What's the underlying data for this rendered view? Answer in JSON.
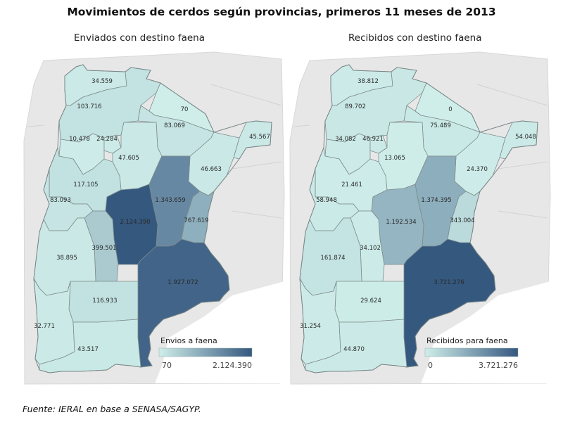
{
  "title": "Movimientos de cerdos según provincias, primeros 11 meses de 2013",
  "maps": [
    {
      "subtitle": "Enviados con destino faena",
      "legend": {
        "title": "Envios a faena",
        "min": "70",
        "max": "2.124.390",
        "color_min": "#cfeeea",
        "color_max": "#35587f"
      },
      "values": {
        "jujuy": "34.559",
        "salta": "103.716",
        "formosa": "70",
        "chaco": "83.069",
        "misiones": "45.567",
        "catamarca": "10.478",
        "tucuman": "24.284",
        "santiago": "47.605",
        "corrientes": "46.663",
        "larioja": "117.105",
        "santafe": "1.343.659",
        "sanjuan": "83.093",
        "cordoba": "2.124.390",
        "entrerios": "767.619",
        "sanluis": "399.501",
        "mendoza": "38.895",
        "buenosaires": "1.927.072",
        "lapampa": "116.933",
        "neuquen": "32.771",
        "rionegro": "43.517"
      }
    },
    {
      "subtitle": "Recibidos con destino faena",
      "legend": {
        "title": "Recibidos para faena",
        "min": "0",
        "max": "3.721.276",
        "color_min": "#cfeeea",
        "color_max": "#35587f"
      },
      "values": {
        "jujuy": "38.812",
        "salta": "89.702",
        "formosa": "0",
        "chaco": "75.489",
        "misiones": "54.048",
        "catamarca": "34.082",
        "tucuman": "46.921",
        "santiago": "13.065",
        "corrientes": "24.370",
        "larioja": "21.461",
        "santafe": "1.374.395",
        "sanjuan": "58.948",
        "cordoba": "1.192.534",
        "entrerios": "343.004",
        "sanluis": "34.102",
        "mendoza": "161.874",
        "buenosaires": "3.721.276",
        "lapampa": "29.624",
        "neuquen": "31.254",
        "rionegro": "44.870"
      }
    }
  ],
  "source": "Fuente: IERAL en base a SENASA/SAGYP."
}
